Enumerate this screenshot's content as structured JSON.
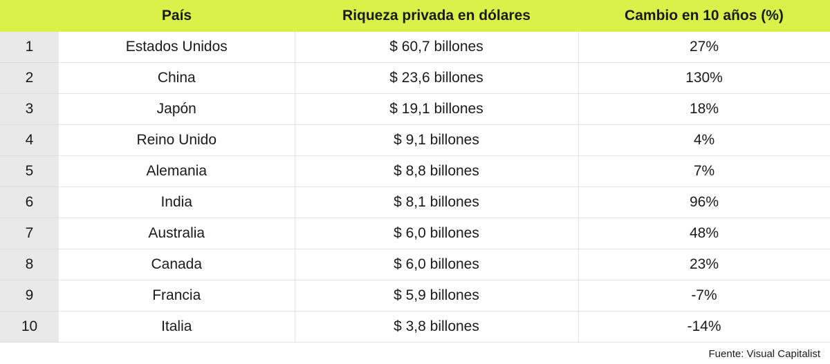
{
  "chart_data": {
    "type": "table",
    "columns": [
      "",
      "País",
      "Riqueza privada en dólares",
      "Cambio en 10 años (%)"
    ],
    "rows": [
      {
        "rank": "1",
        "country": "Estados Unidos",
        "wealth": "$ 60,7 billones",
        "change": "27%"
      },
      {
        "rank": "2",
        "country": "China",
        "wealth": "$ 23,6 billones",
        "change": "130%"
      },
      {
        "rank": "3",
        "country": "Japón",
        "wealth": "$ 19,1 billones",
        "change": "18%"
      },
      {
        "rank": "4",
        "country": "Reino Unido",
        "wealth": "$ 9,1 billones",
        "change": "4%"
      },
      {
        "rank": "5",
        "country": "Alemania",
        "wealth": "$ 8,8 billones",
        "change": "7%"
      },
      {
        "rank": "6",
        "country": "India",
        "wealth": "$ 8,1 billones",
        "change": "96%"
      },
      {
        "rank": "7",
        "country": "Australia",
        "wealth": "$ 6,0 billones",
        "change": "48%"
      },
      {
        "rank": "8",
        "country": "Canada",
        "wealth": "$ 6,0 billones",
        "change": "23%"
      },
      {
        "rank": "9",
        "country": "Francia",
        "wealth": "$ 5,9 billones",
        "change": "-7%"
      },
      {
        "rank": "10",
        "country": "Italia",
        "wealth": "$ 3,8 billones",
        "change": "-14%"
      }
    ]
  },
  "source": "Fuente: Visual Capitalist",
  "colors": {
    "header_background": "#d8f24a",
    "rank_column_background": "#e9e9e9",
    "grid_line": "#e3e3e3"
  }
}
